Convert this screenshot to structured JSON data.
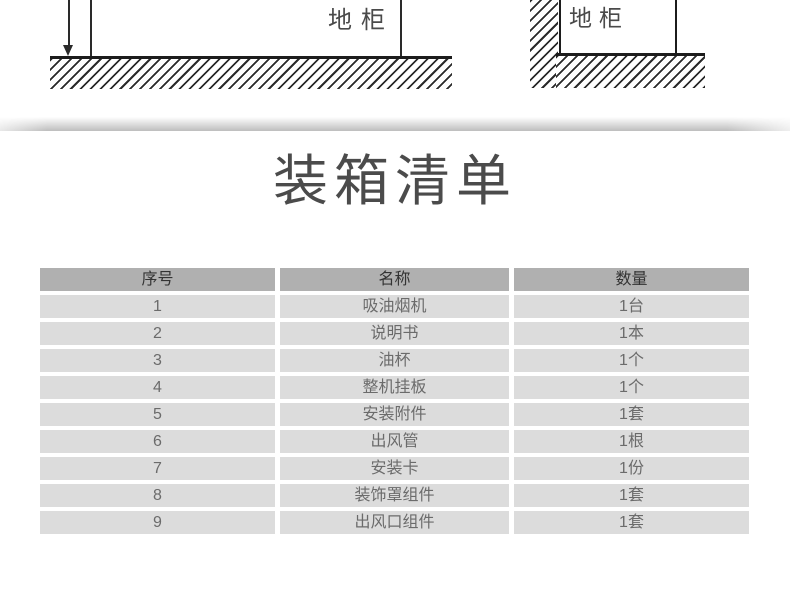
{
  "diagrams": {
    "left": {
      "label": "地柜"
    },
    "right": {
      "label": "地柜"
    }
  },
  "title": "装箱清单",
  "packing_list": {
    "headers": [
      "序号",
      "名称",
      "数量"
    ],
    "rows": [
      [
        "1",
        "吸油烟机",
        "1台"
      ],
      [
        "2",
        "说明书",
        "1本"
      ],
      [
        "3",
        "油杯",
        "1个"
      ],
      [
        "4",
        "整机挂板",
        "1个"
      ],
      [
        "5",
        "安装附件",
        "1套"
      ],
      [
        "6",
        "出风管",
        "1根"
      ],
      [
        "7",
        "安装卡",
        "1份"
      ],
      [
        "8",
        "装饰罩组件",
        "1套"
      ],
      [
        "9",
        "出风口组件",
        "1套"
      ]
    ]
  },
  "colors": {
    "header_bg": "#b0b0b0",
    "row_bg": "#dcdcdc",
    "header_text": "#333333",
    "row_text": "#6b6b6b",
    "title_text": "#4b4b4b",
    "diagram_line": "#2a2a2a"
  }
}
